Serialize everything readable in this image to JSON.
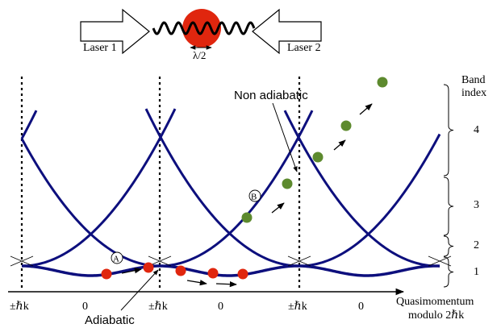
{
  "colors": {
    "band": "#0d0f7d",
    "atom": "#e0260e",
    "green_atom": "#5d8a2e",
    "axis": "#000000"
  },
  "lasers": {
    "left_label": "Laser 1",
    "right_label": "Laser 2",
    "wave_label": "λ/2"
  },
  "annotations": {
    "non_adiabatic": "Non adiabatic",
    "adiabatic": "Adiabatic",
    "marker_a": "A",
    "marker_b": "B"
  },
  "band_index": {
    "title_line1": "Band",
    "title_line2": "index",
    "labels": [
      "4",
      "3",
      "2",
      "1"
    ]
  },
  "x_axis": {
    "tick_labels": [
      "±ℏk",
      "0",
      "±ℏk",
      "0",
      "±ℏk",
      "0"
    ],
    "label_line1": "Quasimomentum",
    "label_line2": "modulo 2ℏk"
  },
  "icons": [
    "right-arrow-icon",
    "left-arrow-icon",
    "wave-icon"
  ]
}
